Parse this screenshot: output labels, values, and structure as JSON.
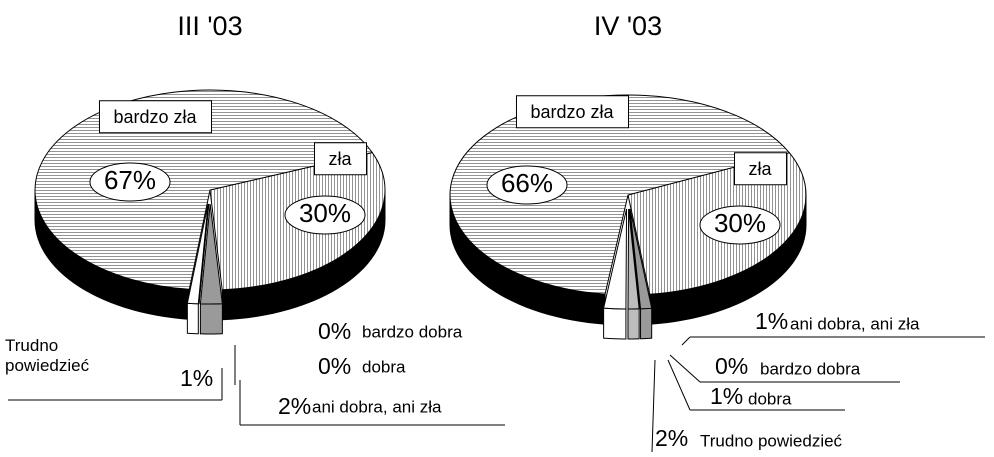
{
  "chart_data": [
    {
      "type": "pie",
      "title": "III '03",
      "categories": [
        "bardzo zła",
        "zła",
        "ani dobra, ani zła",
        "dobra",
        "bardzo dobra",
        "Trudno powiedzieć"
      ],
      "values": [
        67,
        30,
        2,
        0,
        0,
        1
      ],
      "value_labels": [
        "67%",
        "30%",
        "2%",
        "0%",
        "0%",
        "1%"
      ],
      "colors": [
        "#e6e6e6",
        "#f2f2f2",
        "#9a9a9a",
        "#bdbdbd",
        "#d0d0d0",
        "#ffffff"
      ]
    },
    {
      "type": "pie",
      "title": "IV '03",
      "categories": [
        "bardzo zła",
        "zła",
        "ani dobra, ani zła",
        "bardzo dobra",
        "dobra",
        "Trudno powiedzieć"
      ],
      "values": [
        66,
        30,
        1,
        0,
        1,
        2
      ],
      "value_labels": [
        "66%",
        "30%",
        "1%",
        "0%",
        "1%",
        "2%"
      ],
      "colors": [
        "#e6e6e6",
        "#f2f2f2",
        "#9a9a9a",
        "#d0d0d0",
        "#bdbdbd",
        "#ffffff"
      ]
    }
  ]
}
